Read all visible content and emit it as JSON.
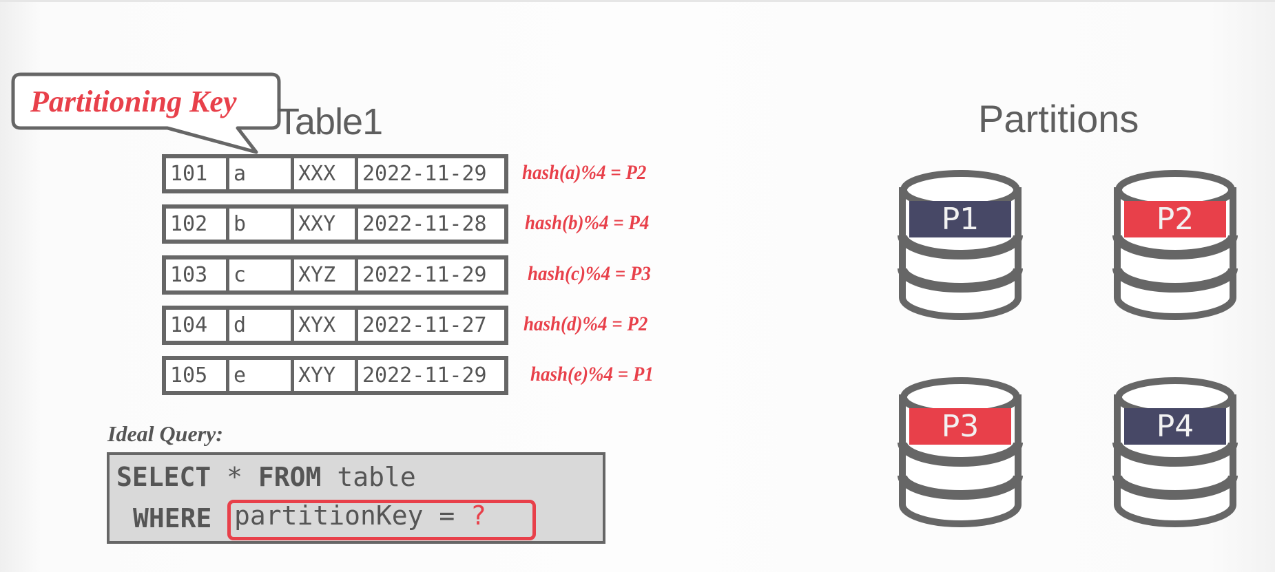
{
  "callout": {
    "text": "Partitioning Key"
  },
  "table": {
    "title": "Table1",
    "rows": [
      {
        "id": "101",
        "key": "a",
        "code": "XXX",
        "date": "2022-11-29",
        "hash": "hash(a)%4 = P2"
      },
      {
        "id": "102",
        "key": "b",
        "code": "XXY",
        "date": "2022-11-28",
        "hash": "hash(b)%4 = P4"
      },
      {
        "id": "103",
        "key": "c",
        "code": "XYZ",
        "date": "2022-11-29",
        "hash": "hash(c)%4 = P3"
      },
      {
        "id": "104",
        "key": "d",
        "code": "XYX",
        "date": "2022-11-27",
        "hash": "hash(d)%4 = P2"
      },
      {
        "id": "105",
        "key": "e",
        "code": "XYY",
        "date": "2022-11-29",
        "hash": "hash(e)%4 = P1"
      }
    ]
  },
  "query": {
    "label": "Ideal Query:",
    "select_kw": "SELECT",
    "star": " * ",
    "from_kw": "FROM",
    "table_name": " table",
    "where_kw": "WHERE",
    "condition": "partitionKey = ",
    "placeholder": "?"
  },
  "partitions": {
    "title": "Partitions",
    "items": [
      {
        "label": "P1",
        "color": "#474866"
      },
      {
        "label": "P2",
        "color": "#e8404a"
      },
      {
        "label": "P3",
        "color": "#e8404a"
      },
      {
        "label": "P4",
        "color": "#474866"
      }
    ]
  },
  "colors": {
    "accent": "#e8404a",
    "navy": "#474866",
    "stroke": "#666666"
  }
}
